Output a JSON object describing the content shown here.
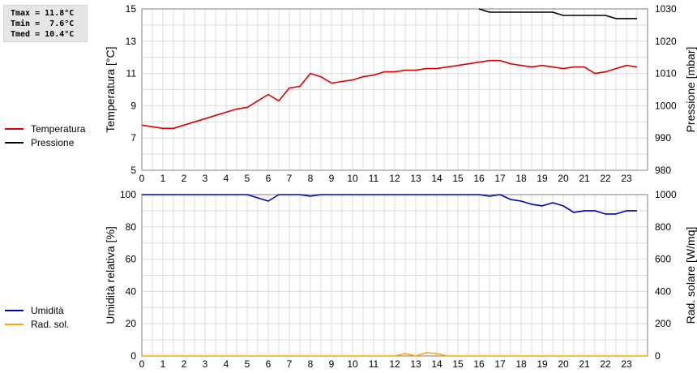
{
  "stats": [
    {
      "label": "Tmax",
      "value": "11.8°C"
    },
    {
      "label": "Tmin",
      "value": " 7.6°C"
    },
    {
      "label": "Tmed",
      "value": "10.4°C"
    }
  ],
  "chart_data": [
    {
      "type": "line",
      "xlabel": "",
      "ylabel": "Temperatura [°C]",
      "y2label": "Pressione [mbar]",
      "xlim": [
        0,
        24
      ],
      "x_ticks": [
        0,
        1,
        2,
        3,
        4,
        5,
        6,
        7,
        8,
        9,
        10,
        11,
        12,
        13,
        14,
        15,
        16,
        17,
        18,
        19,
        20,
        21,
        22,
        23
      ],
      "ylim": [
        5,
        15
      ],
      "y_ticks": [
        5,
        7,
        9,
        11,
        13,
        15
      ],
      "y2lim": [
        980,
        1030
      ],
      "y2_ticks": [
        980,
        990,
        1000,
        1010,
        1020,
        1030
      ],
      "grid": true,
      "legend_position": "left",
      "series": [
        {
          "name": "Temperatura",
          "axis": "left",
          "color": "#dd0000",
          "x": [
            0,
            0.5,
            1,
            1.5,
            2,
            2.5,
            3,
            3.5,
            4,
            4.5,
            5,
            5.5,
            6,
            6.5,
            7,
            7.5,
            8,
            8.5,
            9,
            9.5,
            10,
            10.5,
            11,
            11.5,
            12,
            12.5,
            13,
            13.5,
            14,
            14.5,
            15,
            15.5,
            16,
            16.5,
            17,
            17.5,
            18,
            18.5,
            19,
            19.5,
            20,
            20.5,
            21,
            21.5,
            22,
            22.5,
            23,
            23.5
          ],
          "values": [
            7.8,
            7.7,
            7.6,
            7.6,
            7.8,
            8.0,
            8.2,
            8.4,
            8.6,
            8.8,
            8.9,
            9.3,
            9.7,
            9.3,
            10.1,
            10.2,
            11.0,
            10.8,
            10.4,
            10.5,
            10.6,
            10.8,
            10.9,
            11.1,
            11.1,
            11.2,
            11.2,
            11.3,
            11.3,
            11.4,
            11.5,
            11.6,
            11.7,
            11.8,
            11.8,
            11.6,
            11.5,
            11.4,
            11.5,
            11.4,
            11.3,
            11.4,
            11.4,
            11.0,
            11.1,
            11.3,
            11.5,
            11.4
          ]
        },
        {
          "name": "Pressione",
          "axis": "right",
          "color": "#000000",
          "x": [
            16,
            16.5,
            17,
            17.5,
            18,
            18.5,
            19,
            19.5,
            20,
            20.5,
            21,
            21.5,
            22,
            22.5,
            23,
            23.5
          ],
          "values": [
            1030,
            1029,
            1029,
            1029,
            1029,
            1029,
            1029,
            1029,
            1028,
            1028,
            1028,
            1028,
            1028,
            1027,
            1027,
            1027
          ]
        }
      ]
    },
    {
      "type": "line",
      "xlabel": "",
      "ylabel": "Umidità relativa [%]",
      "y2label": "Rad. solare [W/mq]",
      "xlim": [
        0,
        24
      ],
      "x_ticks": [
        0,
        1,
        2,
        3,
        4,
        5,
        6,
        7,
        8,
        9,
        10,
        11,
        12,
        13,
        14,
        15,
        16,
        17,
        18,
        19,
        20,
        21,
        22,
        23
      ],
      "ylim": [
        0,
        100
      ],
      "y_ticks": [
        0,
        20,
        40,
        60,
        80,
        100
      ],
      "y2lim": [
        0,
        1000
      ],
      "y2_ticks": [
        0,
        200,
        400,
        600,
        800,
        1000
      ],
      "grid": true,
      "legend_position": "left",
      "series": [
        {
          "name": "Umidità",
          "axis": "left",
          "color": "#0000bb",
          "x": [
            0,
            0.5,
            1,
            1.5,
            2,
            2.5,
            3,
            3.5,
            4,
            4.5,
            5,
            5.5,
            6,
            6.5,
            7,
            7.5,
            8,
            8.5,
            9,
            9.5,
            10,
            10.5,
            11,
            11.5,
            12,
            12.5,
            13,
            13.5,
            14,
            14.5,
            15,
            15.5,
            16,
            16.5,
            17,
            17.5,
            18,
            18.5,
            19,
            19.5,
            20,
            20.5,
            21,
            21.5,
            22,
            22.5,
            23,
            23.5
          ],
          "values": [
            100,
            100,
            100,
            100,
            100,
            100,
            100,
            100,
            100,
            100,
            100,
            98,
            96,
            100,
            100,
            100,
            99,
            100,
            100,
            100,
            100,
            100,
            100,
            100,
            100,
            100,
            100,
            100,
            100,
            100,
            100,
            100,
            100,
            99,
            100,
            97,
            96,
            94,
            93,
            95,
            93,
            89,
            90,
            90,
            88,
            88,
            90,
            90
          ]
        },
        {
          "name": "Rad. sol.",
          "axis": "right",
          "color": "#ffa500",
          "x": [
            0,
            12,
            12.5,
            13,
            13.5,
            14,
            14.5,
            24
          ],
          "values": [
            0,
            0,
            15,
            0,
            20,
            15,
            0,
            0
          ]
        }
      ]
    }
  ]
}
